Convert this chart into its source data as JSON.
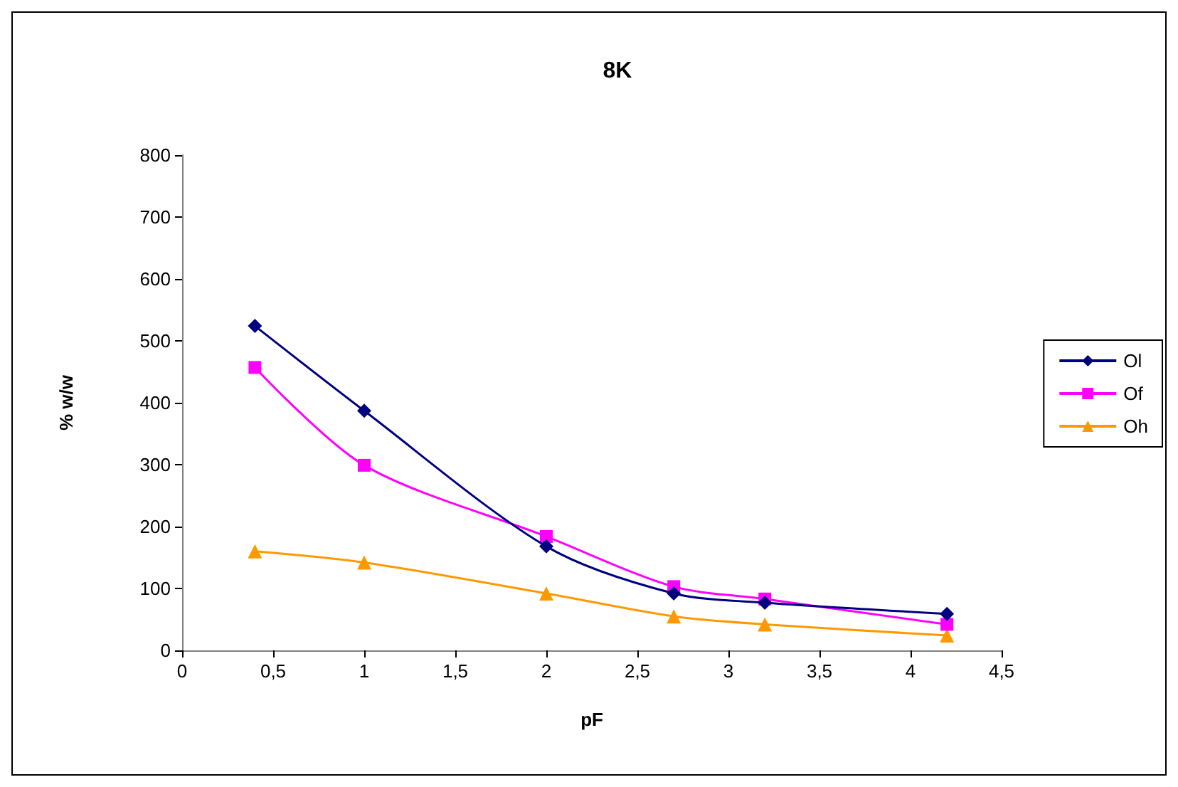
{
  "chart_data": {
    "type": "line",
    "title": "8K",
    "xlabel": "pF",
    "ylabel": "% w/w",
    "xlim": [
      0,
      4.5
    ],
    "xticks": [
      0,
      {
        "value": 0.5,
        "label": "0,5"
      },
      1,
      {
        "value": 1.5,
        "label": "1,5"
      },
      2,
      {
        "value": 2.5,
        "label": "2,5"
      },
      3,
      {
        "value": 3.5,
        "label": "3,5"
      },
      4,
      {
        "value": 4.5,
        "label": "4,5"
      }
    ],
    "ylim": [
      0,
      800
    ],
    "yticks": [
      0,
      100,
      200,
      300,
      400,
      500,
      600,
      700,
      800
    ],
    "x": [
      0.4,
      1,
      2,
      2.7,
      3.2,
      4.2
    ],
    "series": [
      {
        "name": "Ol",
        "color": "#000080",
        "marker": "diamond",
        "values": [
          524,
          387,
          168,
          92,
          77,
          59
        ]
      },
      {
        "name": "Of",
        "color": "#ff00ff",
        "marker": "square",
        "values": [
          457,
          299,
          184,
          103,
          83,
          42
        ]
      },
      {
        "name": "Oh",
        "color": "#ff9900",
        "marker": "triangle",
        "values": [
          160,
          142,
          92,
          55,
          42,
          24
        ]
      }
    ],
    "grid": false,
    "legend": "right",
    "line_style": "solid"
  }
}
